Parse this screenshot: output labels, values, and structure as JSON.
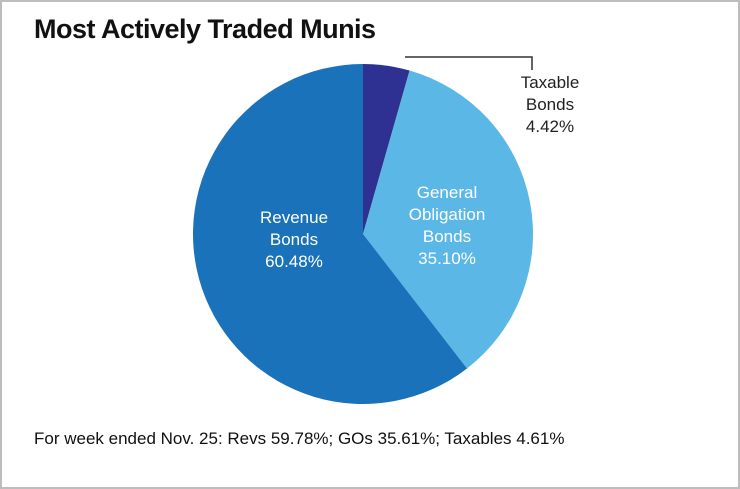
{
  "chart_data": {
    "type": "pie",
    "title": "Most Actively Traded Munis",
    "categories": [
      "Taxable Bonds",
      "General Obligation Bonds",
      "Revenue Bonds"
    ],
    "values": [
      4.42,
      35.1,
      60.48
    ],
    "value_labels": [
      "4.42%",
      "35.10%",
      "60.48%"
    ],
    "colors": [
      "#2e3192",
      "#5bb8e6",
      "#1a72bb"
    ],
    "footnote": "For week ended Nov. 25: Revs 59.78%; GOs 35.61%; Taxables 4.61%"
  }
}
